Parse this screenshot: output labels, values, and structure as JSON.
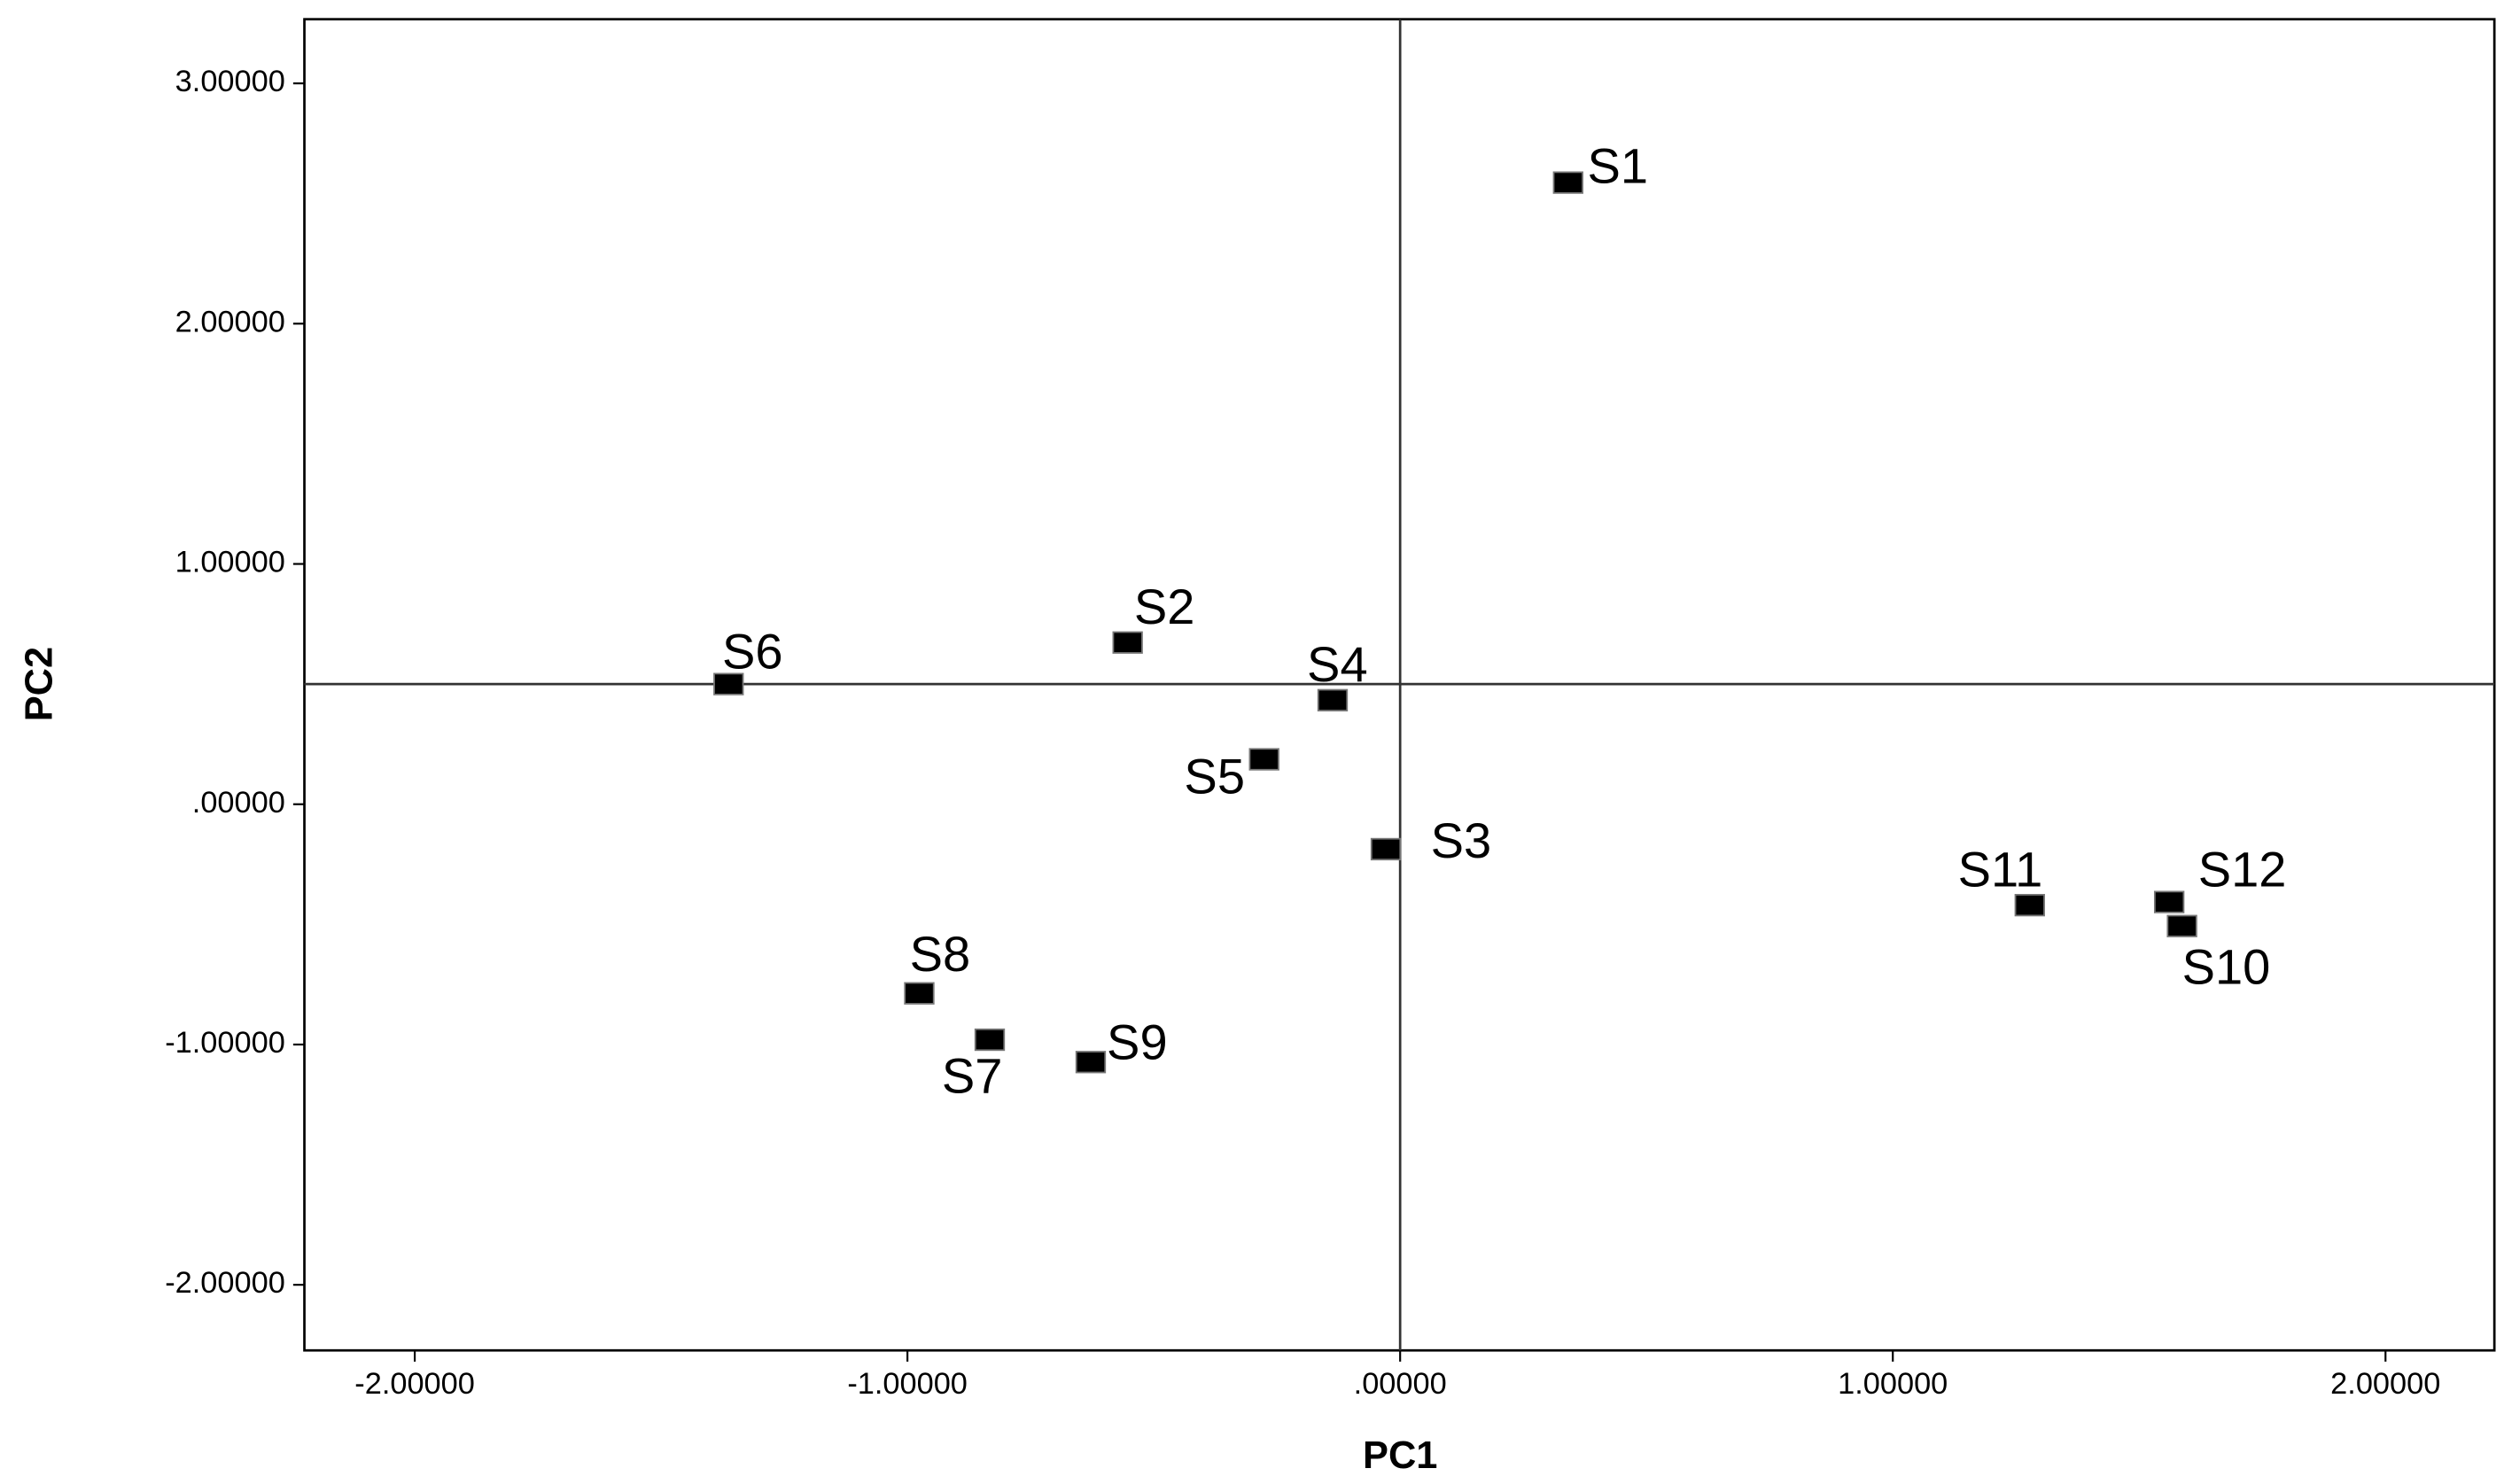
{
  "chart_data": {
    "type": "scatter",
    "x_label": "PC1",
    "y_label": "PC2",
    "labels": [
      "S1",
      "S2",
      "S3",
      "S4",
      "S5",
      "S6",
      "S7",
      "S8",
      "S9",
      "S10",
      "S11",
      "S12"
    ],
    "x": [
      0.341,
      -0.553,
      -0.029,
      -0.137,
      -0.276,
      -1.363,
      -0.833,
      -0.976,
      -0.628,
      1.587,
      1.278,
      1.561
    ],
    "y": [
      2.587,
      0.673,
      -0.187,
      0.433,
      0.187,
      0.5,
      -0.98,
      -0.787,
      -1.073,
      -0.507,
      -0.42,
      -0.407
    ],
    "color": "#000000",
    "xlim": [
      -2.224,
      2.221
    ],
    "ylim": [
      -2.273,
      3.267
    ],
    "xticks": [
      {
        "value": -2,
        "label": "-2.00000"
      },
      {
        "value": -1,
        "label": "-1.00000"
      },
      {
        "value": 0,
        "label": ".00000"
      },
      {
        "value": 1,
        "label": "1.00000"
      },
      {
        "value": 2,
        "label": "2.00000"
      }
    ],
    "yticks": [
      {
        "value": 3,
        "label": "3.00000"
      },
      {
        "value": 2,
        "label": "2.00000"
      },
      {
        "value": 1,
        "label": "1.00000"
      },
      {
        "value": 0,
        "label": ".00000"
      },
      {
        "value": -1,
        "label": "-1.00000"
      },
      {
        "value": -2,
        "label": "-2.00000"
      }
    ],
    "reference_lines": {
      "x": 0,
      "y": 0.5
    },
    "grid": false
  }
}
